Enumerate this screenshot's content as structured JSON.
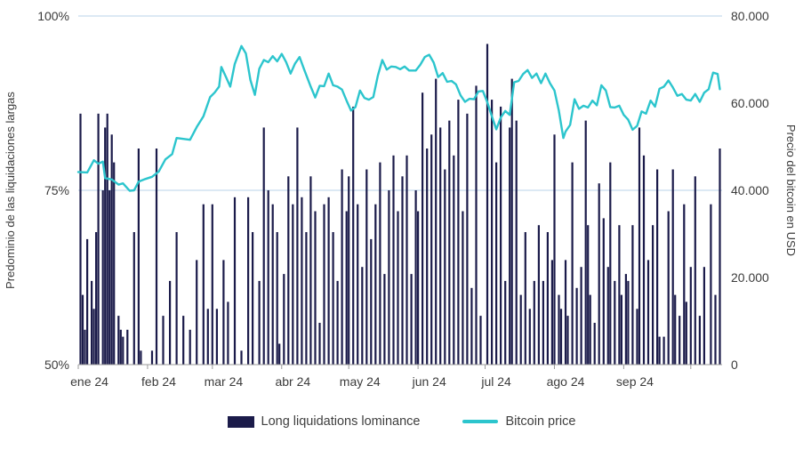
{
  "chart_data": {
    "type": "combo",
    "title": "",
    "left_axis": {
      "label": "Predominio de las liquidaciones largas",
      "min": 50,
      "max": 100,
      "tick_values": [
        100,
        75,
        50
      ],
      "tick_labels": [
        "100%",
        "75%",
        "50%"
      ],
      "grid_values": [
        100,
        75
      ]
    },
    "right_axis": {
      "label": "Precio del bitcoin en USD",
      "min": 0,
      "max": 80000,
      "tick_values": [
        80000,
        60000,
        40000,
        20000,
        0
      ],
      "tick_labels": [
        "80.000",
        "60.000",
        "40.000",
        "20.000",
        "0"
      ]
    },
    "x_axis": {
      "labels": [
        "ene 24",
        "feb 24",
        "mar 24",
        "abr 24",
        "may 24",
        "jun 24",
        "jul 24",
        "ago 24",
        "sep 24"
      ],
      "month_start_days": [
        0,
        31,
        60,
        91,
        121,
        152,
        182,
        213,
        244
      ],
      "tick_days": [
        0,
        31,
        60,
        91,
        121,
        152,
        182,
        213,
        244,
        274
      ],
      "total_days": 288
    },
    "series": [
      {
        "name": "Long liquidations lominance",
        "type": "bar",
        "unit": "%",
        "color": "#1b1b4a",
        "points": [
          [
            1,
            86
          ],
          [
            2,
            60
          ],
          [
            3,
            55
          ],
          [
            4,
            68
          ],
          [
            6,
            62
          ],
          [
            7,
            58
          ],
          [
            8,
            69
          ],
          [
            9,
            86
          ],
          [
            11,
            75
          ],
          [
            12,
            84
          ],
          [
            13,
            86
          ],
          [
            14,
            75
          ],
          [
            15,
            83
          ],
          [
            16,
            79
          ],
          [
            18,
            57
          ],
          [
            19,
            55
          ],
          [
            20,
            54
          ],
          [
            22,
            55
          ],
          [
            25,
            69
          ],
          [
            27,
            81
          ],
          [
            28,
            52
          ],
          [
            33,
            52
          ],
          [
            35,
            81
          ],
          [
            38,
            57
          ],
          [
            41,
            62
          ],
          [
            44,
            69
          ],
          [
            47,
            57
          ],
          [
            50,
            55
          ],
          [
            53,
            65
          ],
          [
            56,
            73
          ],
          [
            58,
            58
          ],
          [
            60,
            73
          ],
          [
            62,
            58
          ],
          [
            65,
            65
          ],
          [
            67,
            59
          ],
          [
            70,
            74
          ],
          [
            73,
            52
          ],
          [
            76,
            74
          ],
          [
            78,
            69
          ],
          [
            81,
            62
          ],
          [
            83,
            84
          ],
          [
            85,
            75
          ],
          [
            87,
            73
          ],
          [
            89,
            69
          ],
          [
            90,
            53
          ],
          [
            92,
            63
          ],
          [
            94,
            77
          ],
          [
            96,
            73
          ],
          [
            98,
            84
          ],
          [
            100,
            74
          ],
          [
            102,
            69
          ],
          [
            104,
            77
          ],
          [
            106,
            72
          ],
          [
            108,
            56
          ],
          [
            110,
            73
          ],
          [
            112,
            74
          ],
          [
            114,
            69
          ],
          [
            116,
            62
          ],
          [
            118,
            78
          ],
          [
            120,
            72
          ],
          [
            121,
            77
          ],
          [
            123,
            87
          ],
          [
            125,
            73
          ],
          [
            127,
            64
          ],
          [
            129,
            78
          ],
          [
            131,
            68
          ],
          [
            133,
            73
          ],
          [
            135,
            79
          ],
          [
            137,
            63
          ],
          [
            139,
            75
          ],
          [
            141,
            80
          ],
          [
            143,
            72
          ],
          [
            145,
            77
          ],
          [
            147,
            80
          ],
          [
            149,
            63
          ],
          [
            151,
            75
          ],
          [
            152,
            72
          ],
          [
            154,
            89
          ],
          [
            156,
            81
          ],
          [
            158,
            83
          ],
          [
            160,
            91
          ],
          [
            162,
            84
          ],
          [
            164,
            78
          ],
          [
            166,
            85
          ],
          [
            168,
            80
          ],
          [
            170,
            88
          ],
          [
            172,
            72
          ],
          [
            174,
            86
          ],
          [
            176,
            61
          ],
          [
            178,
            90
          ],
          [
            180,
            57
          ],
          [
            183,
            96
          ],
          [
            185,
            88
          ],
          [
            187,
            79
          ],
          [
            189,
            87
          ],
          [
            191,
            62
          ],
          [
            193,
            84
          ],
          [
            194,
            91
          ],
          [
            196,
            85
          ],
          [
            198,
            60
          ],
          [
            200,
            69
          ],
          [
            202,
            58
          ],
          [
            204,
            62
          ],
          [
            206,
            70
          ],
          [
            208,
            62
          ],
          [
            210,
            69
          ],
          [
            212,
            65
          ],
          [
            213,
            83
          ],
          [
            215,
            60
          ],
          [
            216,
            58
          ],
          [
            218,
            65
          ],
          [
            219,
            57
          ],
          [
            221,
            79
          ],
          [
            223,
            61
          ],
          [
            225,
            64
          ],
          [
            227,
            85
          ],
          [
            228,
            70
          ],
          [
            229,
            60
          ],
          [
            231,
            56
          ],
          [
            233,
            76
          ],
          [
            235,
            71
          ],
          [
            237,
            64
          ],
          [
            238,
            79
          ],
          [
            240,
            62
          ],
          [
            242,
            70
          ],
          [
            243,
            60
          ],
          [
            245,
            63
          ],
          [
            246,
            62
          ],
          [
            248,
            70
          ],
          [
            250,
            58
          ],
          [
            251,
            84
          ],
          [
            253,
            80
          ],
          [
            255,
            65
          ],
          [
            257,
            70
          ],
          [
            259,
            78
          ],
          [
            260,
            54
          ],
          [
            262,
            54
          ],
          [
            264,
            72
          ],
          [
            266,
            78
          ],
          [
            267,
            60
          ],
          [
            269,
            57
          ],
          [
            271,
            73
          ],
          [
            272,
            59
          ],
          [
            274,
            64
          ],
          [
            276,
            77
          ],
          [
            278,
            57
          ],
          [
            280,
            64
          ],
          [
            283,
            73
          ],
          [
            285,
            60
          ],
          [
            287,
            81
          ]
        ]
      },
      {
        "name": "Bitcoin price",
        "type": "line",
        "unit": "USD",
        "color": "#2cc5cd",
        "points": [
          [
            0,
            44200
          ],
          [
            4,
            44100
          ],
          [
            7,
            46900
          ],
          [
            9,
            46100
          ],
          [
            11,
            46600
          ],
          [
            12,
            42800
          ],
          [
            15,
            42500
          ],
          [
            18,
            41300
          ],
          [
            20,
            41600
          ],
          [
            23,
            39900
          ],
          [
            25,
            40000
          ],
          [
            27,
            42000
          ],
          [
            30,
            42600
          ],
          [
            33,
            43100
          ],
          [
            36,
            44300
          ],
          [
            39,
            47100
          ],
          [
            42,
            48300
          ],
          [
            44,
            52000
          ],
          [
            47,
            51800
          ],
          [
            50,
            51600
          ],
          [
            53,
            54500
          ],
          [
            56,
            57000
          ],
          [
            59,
            61400
          ],
          [
            61,
            62400
          ],
          [
            63,
            63800
          ],
          [
            64,
            68300
          ],
          [
            66,
            66100
          ],
          [
            68,
            63800
          ],
          [
            70,
            69000
          ],
          [
            73,
            73100
          ],
          [
            75,
            71400
          ],
          [
            77,
            65300
          ],
          [
            79,
            61900
          ],
          [
            81,
            67900
          ],
          [
            83,
            69900
          ],
          [
            85,
            69400
          ],
          [
            87,
            70800
          ],
          [
            89,
            69600
          ],
          [
            91,
            71300
          ],
          [
            93,
            69400
          ],
          [
            95,
            66800
          ],
          [
            97,
            69100
          ],
          [
            99,
            70600
          ],
          [
            101,
            67800
          ],
          [
            104,
            63800
          ],
          [
            106,
            61300
          ],
          [
            108,
            64000
          ],
          [
            110,
            63900
          ],
          [
            112,
            66800
          ],
          [
            114,
            64100
          ],
          [
            116,
            63800
          ],
          [
            118,
            63100
          ],
          [
            120,
            60600
          ],
          [
            122,
            58300
          ],
          [
            124,
            59100
          ],
          [
            126,
            62900
          ],
          [
            128,
            61200
          ],
          [
            130,
            60800
          ],
          [
            132,
            61400
          ],
          [
            134,
            66300
          ],
          [
            136,
            69900
          ],
          [
            138,
            67700
          ],
          [
            140,
            68400
          ],
          [
            142,
            68300
          ],
          [
            144,
            67800
          ],
          [
            146,
            68400
          ],
          [
            148,
            67500
          ],
          [
            151,
            67500
          ],
          [
            153,
            68800
          ],
          [
            155,
            70600
          ],
          [
            157,
            71100
          ],
          [
            159,
            69300
          ],
          [
            161,
            66000
          ],
          [
            163,
            66900
          ],
          [
            165,
            64900
          ],
          [
            167,
            65100
          ],
          [
            169,
            64300
          ],
          [
            171,
            61800
          ],
          [
            173,
            60300
          ],
          [
            175,
            61000
          ],
          [
            177,
            60900
          ],
          [
            179,
            62700
          ],
          [
            181,
            62800
          ],
          [
            183,
            60200
          ],
          [
            185,
            57000
          ],
          [
            187,
            54000
          ],
          [
            189,
            56700
          ],
          [
            191,
            58200
          ],
          [
            193,
            57300
          ],
          [
            195,
            64800
          ],
          [
            197,
            65100
          ],
          [
            199,
            66700
          ],
          [
            201,
            67600
          ],
          [
            203,
            65800
          ],
          [
            205,
            66800
          ],
          [
            207,
            64600
          ],
          [
            209,
            66800
          ],
          [
            211,
            64600
          ],
          [
            213,
            62900
          ],
          [
            215,
            58200
          ],
          [
            217,
            52000
          ],
          [
            218,
            53500
          ],
          [
            220,
            55000
          ],
          [
            222,
            60900
          ],
          [
            224,
            58700
          ],
          [
            226,
            59400
          ],
          [
            228,
            59000
          ],
          [
            230,
            60600
          ],
          [
            232,
            59500
          ],
          [
            234,
            64100
          ],
          [
            236,
            62900
          ],
          [
            238,
            59100
          ],
          [
            240,
            59000
          ],
          [
            242,
            59400
          ],
          [
            244,
            57300
          ],
          [
            246,
            56200
          ],
          [
            248,
            53900
          ],
          [
            250,
            54800
          ],
          [
            252,
            58100
          ],
          [
            254,
            57600
          ],
          [
            256,
            60600
          ],
          [
            258,
            59200
          ],
          [
            260,
            63300
          ],
          [
            262,
            63800
          ],
          [
            264,
            65200
          ],
          [
            266,
            63600
          ],
          [
            268,
            61700
          ],
          [
            270,
            62100
          ],
          [
            272,
            60800
          ],
          [
            274,
            60600
          ],
          [
            276,
            62100
          ],
          [
            278,
            60300
          ],
          [
            280,
            62400
          ],
          [
            282,
            63200
          ],
          [
            284,
            67000
          ],
          [
            286,
            66700
          ],
          [
            287,
            63200
          ]
        ]
      }
    ],
    "legend": [
      "Long liquidations lominance",
      "Bitcoin price"
    ],
    "grid": "horizontal-partial",
    "legend_position": "bottom-center"
  },
  "colors": {
    "background": "#ffffff",
    "gridline": "#b9d3e8",
    "axis_line": "#9b9b9b",
    "bar": "#1b1b4a",
    "line": "#2cc5cd",
    "text": "#3b3b3b"
  }
}
